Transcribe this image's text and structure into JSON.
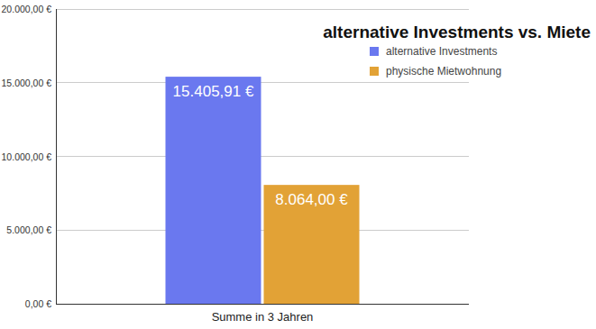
{
  "chart_data": {
    "type": "bar",
    "title": "alternative Investments vs. Miete",
    "categories": [
      "Summe in 3 Jahren"
    ],
    "series": [
      {
        "name": "alternative Investments",
        "color": "#6a78ef",
        "values": [
          15405.91
        ],
        "value_labels": [
          "15.405,91 €"
        ]
      },
      {
        "name": "physische Mietwohnung",
        "color": "#e2a236",
        "values": [
          8064.0
        ],
        "value_labels": [
          "8.064,00 €"
        ]
      }
    ],
    "ylim": [
      0,
      20000
    ],
    "yticks": [
      {
        "value": 0,
        "label": "0,00 €"
      },
      {
        "value": 5000,
        "label": "5.000,00 €"
      },
      {
        "value": 10000,
        "label": "10.000,00 €"
      },
      {
        "value": 15000,
        "label": "15.000,00 €"
      },
      {
        "value": 20000,
        "label": "20.000,00 €"
      }
    ],
    "grid": true,
    "legend": "top-right",
    "data_labels": true
  }
}
